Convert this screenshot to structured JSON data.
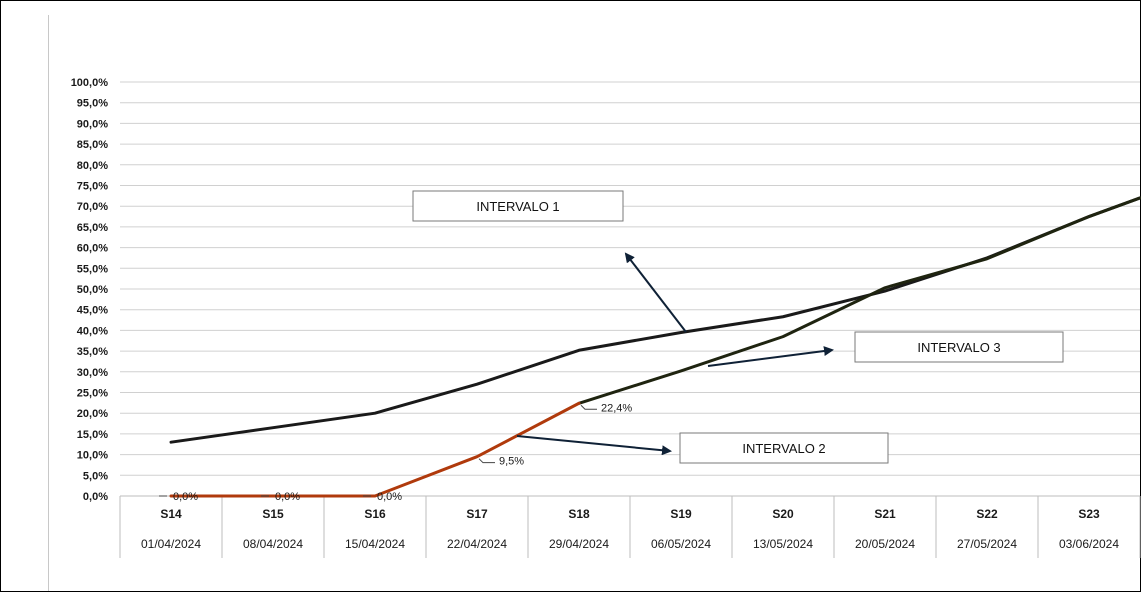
{
  "chart_data": {
    "type": "line",
    "categories": [
      "S14",
      "S15",
      "S16",
      "S17",
      "S18",
      "S19",
      "S20",
      "S21",
      "S22",
      "S23"
    ],
    "dates": [
      "01/04/2024",
      "08/04/2024",
      "15/04/2024",
      "22/04/2024",
      "29/04/2024",
      "06/05/2024",
      "13/05/2024",
      "20/05/2024",
      "27/05/2024",
      "03/06/2024"
    ],
    "ylim": [
      0,
      100
    ],
    "yticks": [
      "0,0%",
      "5,0%",
      "10,0%",
      "15,0%",
      "20,0%",
      "25,0%",
      "30,0%",
      "35,0%",
      "40,0%",
      "45,0%",
      "50,0%",
      "55,0%",
      "60,0%",
      "65,0%",
      "70,0%",
      "75,0%",
      "80,0%",
      "85,0%",
      "90,0%",
      "95,0%",
      "100,0%"
    ],
    "grid": true,
    "series": [
      {
        "color": "#1a1a1a",
        "values": [
          13.0,
          16.5,
          20.0,
          27.0,
          35.2,
          39.5,
          43.3,
          49.5,
          57.5,
          67.5
        ],
        "end_value": 72.0
      },
      {
        "color": "#1f2410",
        "values": [
          null,
          null,
          null,
          null,
          22.4,
          30.2,
          38.5,
          50.3,
          57.3,
          67.5
        ],
        "end_value": 72.0
      },
      {
        "color": "#b03a0c",
        "values": [
          0.0,
          0.0,
          0.0,
          9.5,
          22.4,
          null,
          null,
          null,
          null,
          null
        ]
      }
    ],
    "data_labels": [
      {
        "text": "0,0%",
        "category": 0,
        "value": 0.0
      },
      {
        "text": "0,0%",
        "category": 1,
        "value": 0.0
      },
      {
        "text": "0,0%",
        "category": 2,
        "value": 0.0
      },
      {
        "text": "9,5%",
        "category": 3,
        "value": 9.5
      },
      {
        "text": "22,4%",
        "category": 4,
        "value": 22.4
      }
    ],
    "annotations": [
      {
        "text": "INTERVALO 1"
      },
      {
        "text": "INTERVALO 2"
      },
      {
        "text": "INTERVALO 3"
      }
    ]
  }
}
